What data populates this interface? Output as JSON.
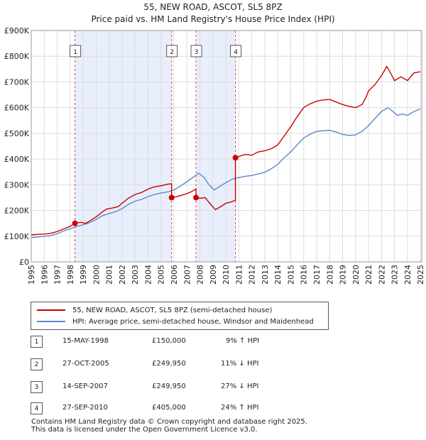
{
  "chart_data": {
    "type": "line",
    "title": "55, NEW ROAD, ASCOT, SL5 8PZ",
    "subtitle": "Price paid vs. HM Land Registry's House Price Index (HPI)",
    "xlim": [
      1995,
      2025.1
    ],
    "ylim": [
      0,
      900000
    ],
    "x_ticks": [
      "1995",
      "1996",
      "1997",
      "1998",
      "1999",
      "2000",
      "2001",
      "2002",
      "2003",
      "2004",
      "2005",
      "2006",
      "2007",
      "2008",
      "2009",
      "2010",
      "2011",
      "2012",
      "2013",
      "2014",
      "2015",
      "2016",
      "2017",
      "2018",
      "2019",
      "2020",
      "2021",
      "2022",
      "2023",
      "2024",
      "2025"
    ],
    "y_ticks": [
      {
        "value": 0,
        "label": "£0"
      },
      {
        "value": 100000,
        "label": "£100K"
      },
      {
        "value": 200000,
        "label": "£200K"
      },
      {
        "value": 300000,
        "label": "£300K"
      },
      {
        "value": 400000,
        "label": "£400K"
      },
      {
        "value": 500000,
        "label": "£500K"
      },
      {
        "value": 600000,
        "label": "£600K"
      },
      {
        "value": 700000,
        "label": "£700K"
      },
      {
        "value": 800000,
        "label": "£800K"
      },
      {
        "value": 900000,
        "label": "£900K"
      }
    ],
    "shaded_periods": [
      [
        1998.37,
        2005.82
      ],
      [
        2007.7,
        2010.74
      ]
    ],
    "series": [
      {
        "name": "55, NEW ROAD, ASCOT, SL5 8PZ (semi-detached house)",
        "color": "#cc0000",
        "points": [
          [
            1995.0,
            105000
          ],
          [
            1995.5,
            107000
          ],
          [
            1996.0,
            108000
          ],
          [
            1996.5,
            111000
          ],
          [
            1997.0,
            118000
          ],
          [
            1997.5,
            128000
          ],
          [
            1998.0,
            138000
          ],
          [
            1998.37,
            150000
          ],
          [
            1998.37,
            150000
          ],
          [
            1998.8,
            154000
          ],
          [
            1999.2,
            150000
          ],
          [
            1999.6,
            162000
          ],
          [
            2000.0,
            175000
          ],
          [
            2000.5,
            195000
          ],
          [
            2000.8,
            205000
          ],
          [
            2001.3,
            210000
          ],
          [
            2001.7,
            215000
          ],
          [
            2002.0,
            228000
          ],
          [
            2002.5,
            248000
          ],
          [
            2003.0,
            262000
          ],
          [
            2003.5,
            270000
          ],
          [
            2004.0,
            283000
          ],
          [
            2004.5,
            292000
          ],
          [
            2005.0,
            296000
          ],
          [
            2005.5,
            302000
          ],
          [
            2005.82,
            304000
          ],
          [
            2005.82,
            249950
          ],
          [
            2006.3,
            255000
          ],
          [
            2006.8,
            262000
          ],
          [
            2007.3,
            272000
          ],
          [
            2007.7,
            283000
          ],
          [
            2007.7,
            249950
          ],
          [
            2008.0,
            247000
          ],
          [
            2008.4,
            250000
          ],
          [
            2008.8,
            225000
          ],
          [
            2009.2,
            203000
          ],
          [
            2009.6,
            215000
          ],
          [
            2010.0,
            228000
          ],
          [
            2010.4,
            233000
          ],
          [
            2010.74,
            240000
          ],
          [
            2010.74,
            405000
          ],
          [
            2011.0,
            410000
          ],
          [
            2011.5,
            418000
          ],
          [
            2012.0,
            415000
          ],
          [
            2012.5,
            428000
          ],
          [
            2013.0,
            432000
          ],
          [
            2013.5,
            440000
          ],
          [
            2014.0,
            455000
          ],
          [
            2014.5,
            490000
          ],
          [
            2015.0,
            525000
          ],
          [
            2015.5,
            565000
          ],
          [
            2016.0,
            600000
          ],
          [
            2016.5,
            615000
          ],
          [
            2017.0,
            625000
          ],
          [
            2017.5,
            630000
          ],
          [
            2018.0,
            632000
          ],
          [
            2018.5,
            622000
          ],
          [
            2019.0,
            612000
          ],
          [
            2019.5,
            605000
          ],
          [
            2020.0,
            600000
          ],
          [
            2020.5,
            612000
          ],
          [
            2020.8,
            640000
          ],
          [
            2021.0,
            665000
          ],
          [
            2021.5,
            690000
          ],
          [
            2022.0,
            725000
          ],
          [
            2022.4,
            760000
          ],
          [
            2022.7,
            735000
          ],
          [
            2023.0,
            705000
          ],
          [
            2023.5,
            720000
          ],
          [
            2024.0,
            705000
          ],
          [
            2024.5,
            735000
          ],
          [
            2025.0,
            740000
          ]
        ]
      },
      {
        "name": "HPI: Average price, semi-detached house, Windsor and Maidenhead",
        "color": "#5b88c9",
        "points": [
          [
            1995.0,
            95000
          ],
          [
            1995.5,
            97000
          ],
          [
            1996.0,
            99000
          ],
          [
            1996.5,
            102000
          ],
          [
            1997.0,
            109000
          ],
          [
            1997.5,
            120000
          ],
          [
            1998.0,
            129000
          ],
          [
            1998.5,
            138000
          ],
          [
            1999.0,
            144000
          ],
          [
            1999.5,
            152000
          ],
          [
            2000.0,
            165000
          ],
          [
            2000.5,
            180000
          ],
          [
            2001.0,
            188000
          ],
          [
            2001.5,
            195000
          ],
          [
            2002.0,
            207000
          ],
          [
            2002.5,
            224000
          ],
          [
            2003.0,
            236000
          ],
          [
            2003.5,
            243000
          ],
          [
            2004.0,
            254000
          ],
          [
            2004.5,
            262000
          ],
          [
            2005.0,
            268000
          ],
          [
            2005.5,
            272000
          ],
          [
            2006.0,
            280000
          ],
          [
            2006.5,
            295000
          ],
          [
            2007.0,
            312000
          ],
          [
            2007.5,
            330000
          ],
          [
            2007.9,
            345000
          ],
          [
            2008.3,
            330000
          ],
          [
            2008.7,
            300000
          ],
          [
            2009.1,
            280000
          ],
          [
            2009.5,
            292000
          ],
          [
            2010.0,
            308000
          ],
          [
            2010.5,
            322000
          ],
          [
            2011.0,
            328000
          ],
          [
            2011.5,
            333000
          ],
          [
            2012.0,
            336000
          ],
          [
            2012.5,
            342000
          ],
          [
            2013.0,
            348000
          ],
          [
            2013.5,
            362000
          ],
          [
            2014.0,
            380000
          ],
          [
            2014.5,
            405000
          ],
          [
            2015.0,
            428000
          ],
          [
            2015.5,
            455000
          ],
          [
            2016.0,
            482000
          ],
          [
            2016.5,
            497000
          ],
          [
            2017.0,
            508000
          ],
          [
            2017.5,
            510000
          ],
          [
            2018.0,
            512000
          ],
          [
            2018.5,
            505000
          ],
          [
            2019.0,
            496000
          ],
          [
            2019.5,
            492000
          ],
          [
            2020.0,
            494000
          ],
          [
            2020.5,
            508000
          ],
          [
            2021.0,
            530000
          ],
          [
            2021.5,
            558000
          ],
          [
            2022.0,
            585000
          ],
          [
            2022.5,
            600000
          ],
          [
            2022.8,
            588000
          ],
          [
            2023.2,
            570000
          ],
          [
            2023.6,
            575000
          ],
          [
            2024.0,
            570000
          ],
          [
            2024.5,
            585000
          ],
          [
            2025.0,
            595000
          ]
        ]
      }
    ],
    "sales": [
      {
        "label": "1",
        "x": 1998.37,
        "price": 150000,
        "date": "15-MAY-1998",
        "price_text": "£150,000",
        "hpi_text": "9% ↑ HPI"
      },
      {
        "label": "2",
        "x": 2005.82,
        "price": 249950,
        "date": "27-OCT-2005",
        "price_text": "£249,950",
        "hpi_text": "11% ↓ HPI"
      },
      {
        "label": "3",
        "x": 2007.7,
        "price": 249950,
        "date": "14-SEP-2007",
        "price_text": "£249,950",
        "hpi_text": "27% ↓ HPI"
      },
      {
        "label": "4",
        "x": 2010.74,
        "price": 405000,
        "date": "27-SEP-2010",
        "price_text": "£405,000",
        "hpi_text": "24% ↑ HPI"
      }
    ],
    "marker_value": 820000
  },
  "legend": {
    "property": "55, NEW ROAD, ASCOT, SL5 8PZ (semi-detached house)",
    "hpi": "HPI: Average price, semi-detached house, Windsor and Maidenhead"
  },
  "colors": {
    "property": "#cc0000",
    "hpi": "#5b88c9",
    "shade": "#e8eefb",
    "grid": "#dddddd"
  },
  "footer": {
    "line1": "Contains HM Land Registry data © Crown copyright and database right 2025.",
    "line2": "This data is licensed under the Open Government Licence v3.0."
  }
}
